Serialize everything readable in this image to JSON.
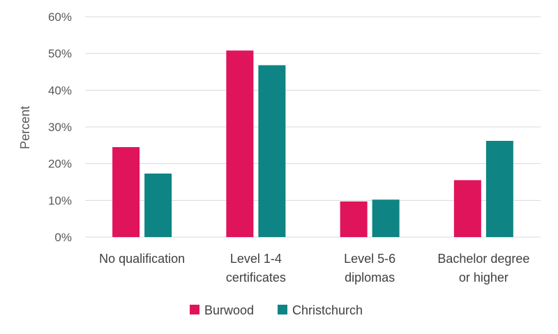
{
  "chart_data": {
    "type": "bar",
    "categories": [
      [
        "No qualification"
      ],
      [
        "Level 1-4",
        "certificates"
      ],
      [
        "Level 5-6",
        "diplomas"
      ],
      [
        "Bachelor degree",
        "or higher"
      ]
    ],
    "series": [
      {
        "name": "Burwood",
        "color": "#e0145a",
        "values": [
          24.5,
          50.8,
          9.7,
          15.5
        ]
      },
      {
        "name": "Christchurch",
        "color": "#0e8484",
        "values": [
          17.3,
          46.8,
          10.2,
          26.2
        ]
      }
    ],
    "ylabel": "Percent",
    "ylim": [
      0,
      60
    ],
    "yticks": [
      "0%",
      "10%",
      "20%",
      "30%",
      "40%",
      "50%",
      "60%"
    ],
    "grid": true,
    "legend_position": "bottom"
  }
}
